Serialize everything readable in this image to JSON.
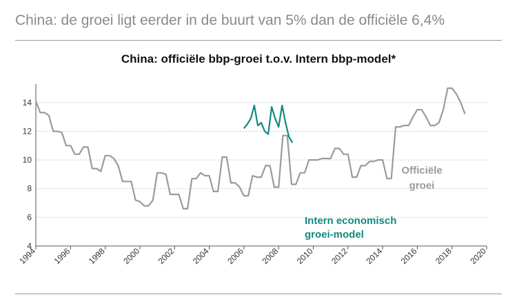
{
  "headline": "China: de groei ligt eerder in de buurt van 5% dan de officiële 6,4%",
  "colors": {
    "official": "#9a9a9a",
    "model": "#0f8a80",
    "grid": "#bbbbbb",
    "axis": "#555555"
  },
  "chart_data": {
    "type": "line",
    "title": "China: officiële bbp-groei t.o.v. Intern bbp-model*",
    "xlabel": "",
    "ylabel": "",
    "xlim": [
      1994,
      2020
    ],
    "ylim": [
      4,
      15
    ],
    "x_ticks": [
      "1994",
      "1996",
      "1998",
      "2000",
      "2002",
      "2004",
      "2006",
      "2008",
      "2010",
      "2012",
      "2014",
      "2016",
      "2018",
      "2020"
    ],
    "y_ticks": [
      "4",
      "6",
      "8",
      "10",
      "12",
      "14"
    ],
    "grid": "horizontal-dotted",
    "annotations": [
      {
        "text": "Officiële",
        "series": "official"
      },
      {
        "text": "groei",
        "series": "official"
      },
      {
        "text": "Intern economisch",
        "series": "model"
      },
      {
        "text": "groei-model",
        "series": "model"
      }
    ],
    "series": [
      {
        "key": "official",
        "color": "#9a9a9a",
        "points": [
          [
            1994.0,
            14.1
          ],
          [
            1994.25,
            13.3
          ],
          [
            1994.5,
            13.3
          ],
          [
            1994.75,
            13.1
          ],
          [
            1995.0,
            12.0
          ],
          [
            1995.25,
            12.0
          ],
          [
            1995.5,
            11.9
          ],
          [
            1995.75,
            11.0
          ],
          [
            1996.0,
            11.0
          ],
          [
            1996.25,
            10.4
          ],
          [
            1996.5,
            10.4
          ],
          [
            1996.75,
            10.9
          ],
          [
            1997.0,
            10.9
          ],
          [
            1997.25,
            9.4
          ],
          [
            1997.5,
            9.4
          ],
          [
            1997.75,
            9.2
          ],
          [
            1998.0,
            10.3
          ],
          [
            1998.25,
            10.3
          ],
          [
            1998.5,
            10.1
          ],
          [
            1998.75,
            9.6
          ],
          [
            1999.0,
            8.5
          ],
          [
            1999.25,
            8.5
          ],
          [
            1999.5,
            8.5
          ],
          [
            1999.75,
            7.2
          ],
          [
            2000.0,
            7.1
          ],
          [
            2000.25,
            6.8
          ],
          [
            2000.5,
            6.8
          ],
          [
            2000.75,
            7.2
          ],
          [
            2001.0,
            9.1
          ],
          [
            2001.25,
            9.1
          ],
          [
            2001.5,
            9.0
          ],
          [
            2001.75,
            7.6
          ],
          [
            2002.0,
            7.6
          ],
          [
            2002.25,
            7.6
          ],
          [
            2002.5,
            6.6
          ],
          [
            2002.75,
            6.6
          ],
          [
            2003.0,
            8.7
          ],
          [
            2003.25,
            8.7
          ],
          [
            2003.5,
            9.1
          ],
          [
            2003.75,
            8.9
          ],
          [
            2004.0,
            8.9
          ],
          [
            2004.25,
            7.8
          ],
          [
            2004.5,
            7.8
          ],
          [
            2004.75,
            10.2
          ],
          [
            2005.0,
            10.2
          ],
          [
            2005.25,
            8.4
          ],
          [
            2005.5,
            8.4
          ],
          [
            2005.75,
            8.1
          ],
          [
            2006.0,
            7.5
          ],
          [
            2006.25,
            7.5
          ],
          [
            2006.5,
            8.9
          ],
          [
            2006.75,
            8.8
          ],
          [
            2007.0,
            8.8
          ],
          [
            2007.25,
            9.6
          ],
          [
            2007.5,
            9.6
          ],
          [
            2007.75,
            8.1
          ],
          [
            2008.0,
            8.1
          ],
          [
            2008.25,
            11.7
          ],
          [
            2008.5,
            11.7
          ],
          [
            2008.75,
            8.3
          ],
          [
            2009.0,
            8.3
          ],
          [
            2009.25,
            9.1
          ],
          [
            2009.5,
            9.1
          ],
          [
            2009.75,
            10.0
          ],
          [
            2010.0,
            10.0
          ],
          [
            2010.25,
            10.0
          ],
          [
            2010.5,
            10.1
          ],
          [
            2010.75,
            10.1
          ],
          [
            2011.0,
            10.1
          ],
          [
            2011.25,
            10.8
          ],
          [
            2011.5,
            10.8
          ],
          [
            2011.75,
            10.4
          ],
          [
            2012.0,
            10.4
          ],
          [
            2012.25,
            8.8
          ],
          [
            2012.5,
            8.8
          ],
          [
            2012.75,
            9.6
          ],
          [
            2013.0,
            9.6
          ],
          [
            2013.25,
            9.9
          ],
          [
            2013.5,
            9.9
          ],
          [
            2013.75,
            10.0
          ],
          [
            2014.0,
            10.0
          ],
          [
            2014.25,
            8.7
          ],
          [
            2014.5,
            8.7
          ],
          [
            2014.75,
            12.3
          ],
          [
            2015.0,
            12.3
          ],
          [
            2015.25,
            12.4
          ],
          [
            2015.5,
            12.4
          ],
          [
            2015.75,
            13.0
          ],
          [
            2016.0,
            13.5
          ],
          [
            2016.25,
            13.5
          ],
          [
            2016.5,
            13.0
          ],
          [
            2016.75,
            12.4
          ],
          [
            2017.0,
            12.4
          ],
          [
            2017.25,
            12.6
          ],
          [
            2017.5,
            13.5
          ],
          [
            2017.75,
            15.0
          ],
          [
            2018.0,
            15.0
          ],
          [
            2018.25,
            14.6
          ],
          [
            2018.5,
            14.0
          ],
          [
            2018.75,
            13.2
          ]
        ]
      },
      {
        "key": "model",
        "color": "#0f8a80",
        "points": [
          [
            2006.0,
            12.2
          ],
          [
            2006.2,
            12.5
          ],
          [
            2006.4,
            12.9
          ],
          [
            2006.6,
            13.8
          ],
          [
            2006.8,
            12.4
          ],
          [
            2007.0,
            12.6
          ],
          [
            2007.2,
            12.0
          ],
          [
            2007.4,
            11.8
          ],
          [
            2007.6,
            13.7
          ],
          [
            2007.8,
            12.9
          ],
          [
            2008.0,
            12.3
          ],
          [
            2008.2,
            13.8
          ],
          [
            2008.4,
            12.6
          ],
          [
            2008.6,
            11.6
          ],
          [
            2008.8,
            11.2
          ]
        ]
      }
    ]
  }
}
